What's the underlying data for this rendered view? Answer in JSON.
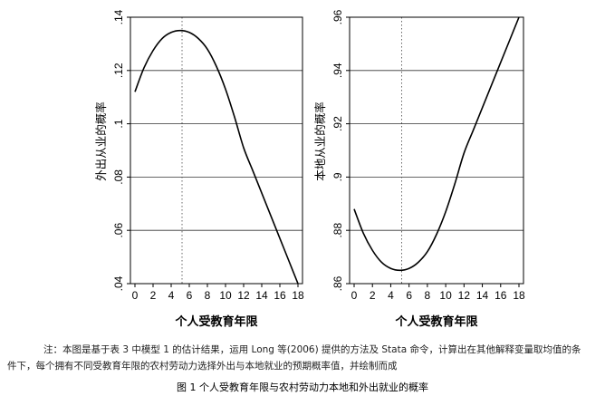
{
  "chart_data": [
    {
      "type": "line",
      "ylabel": "外出从业的概率",
      "xlabel": "个人受教育年限",
      "xticks": [
        "0",
        "2",
        "4",
        "6",
        "8",
        "10",
        "12",
        "14",
        "16",
        "18"
      ],
      "yticks": [
        ".04",
        ".06",
        ".08",
        ".1",
        ".12",
        ".14"
      ],
      "xlim": [
        0,
        18
      ],
      "ylim": [
        0.04,
        0.14
      ],
      "grid": "horizontal",
      "reference_line_x": 5.2,
      "x": [
        0,
        1,
        2,
        3,
        4,
        5,
        6,
        7,
        8,
        9,
        10,
        11,
        12,
        13,
        14,
        15,
        16,
        17,
        18
      ],
      "y": [
        0.112,
        0.121,
        0.1275,
        0.132,
        0.1343,
        0.135,
        0.1343,
        0.132,
        0.128,
        0.1215,
        0.113,
        0.1025,
        0.091,
        0.0825,
        0.074,
        0.0655,
        0.057,
        0.0485,
        0.04
      ]
    },
    {
      "type": "line",
      "ylabel": "本地从业的概率",
      "xlabel": "个人受教育年限",
      "xticks": [
        "0",
        "2",
        "4",
        "6",
        "8",
        "10",
        "12",
        "14",
        "16",
        "18"
      ],
      "yticks": [
        ".86",
        ".88",
        ".9",
        ".92",
        ".94",
        ".96"
      ],
      "xlim": [
        0,
        18
      ],
      "ylim": [
        0.86,
        0.96
      ],
      "grid": "horizontal",
      "reference_line_x": 5.2,
      "x": [
        0,
        1,
        2,
        3,
        4,
        5,
        6,
        7,
        8,
        9,
        10,
        11,
        12,
        13,
        14,
        15,
        16,
        17,
        18
      ],
      "y": [
        0.888,
        0.879,
        0.8725,
        0.868,
        0.8657,
        0.865,
        0.8657,
        0.868,
        0.872,
        0.8785,
        0.887,
        0.8975,
        0.909,
        0.9175,
        0.926,
        0.9345,
        0.943,
        0.9515,
        0.96
      ]
    }
  ],
  "notes": {
    "line1": "注：本图是基于表 3 中模型 1 的估计结果，运用 Long 等(2006) 提供的方法及 Stata 命令，计算出在其他解释变量取均值的条",
    "line2": "件下，每个拥有不同受教育年限的农村劳动力选择外出与本地就业的预期概率值，并绘制而成"
  },
  "caption": "图 1    个人受教育年限与农村劳动力本地和外出就业的概率"
}
